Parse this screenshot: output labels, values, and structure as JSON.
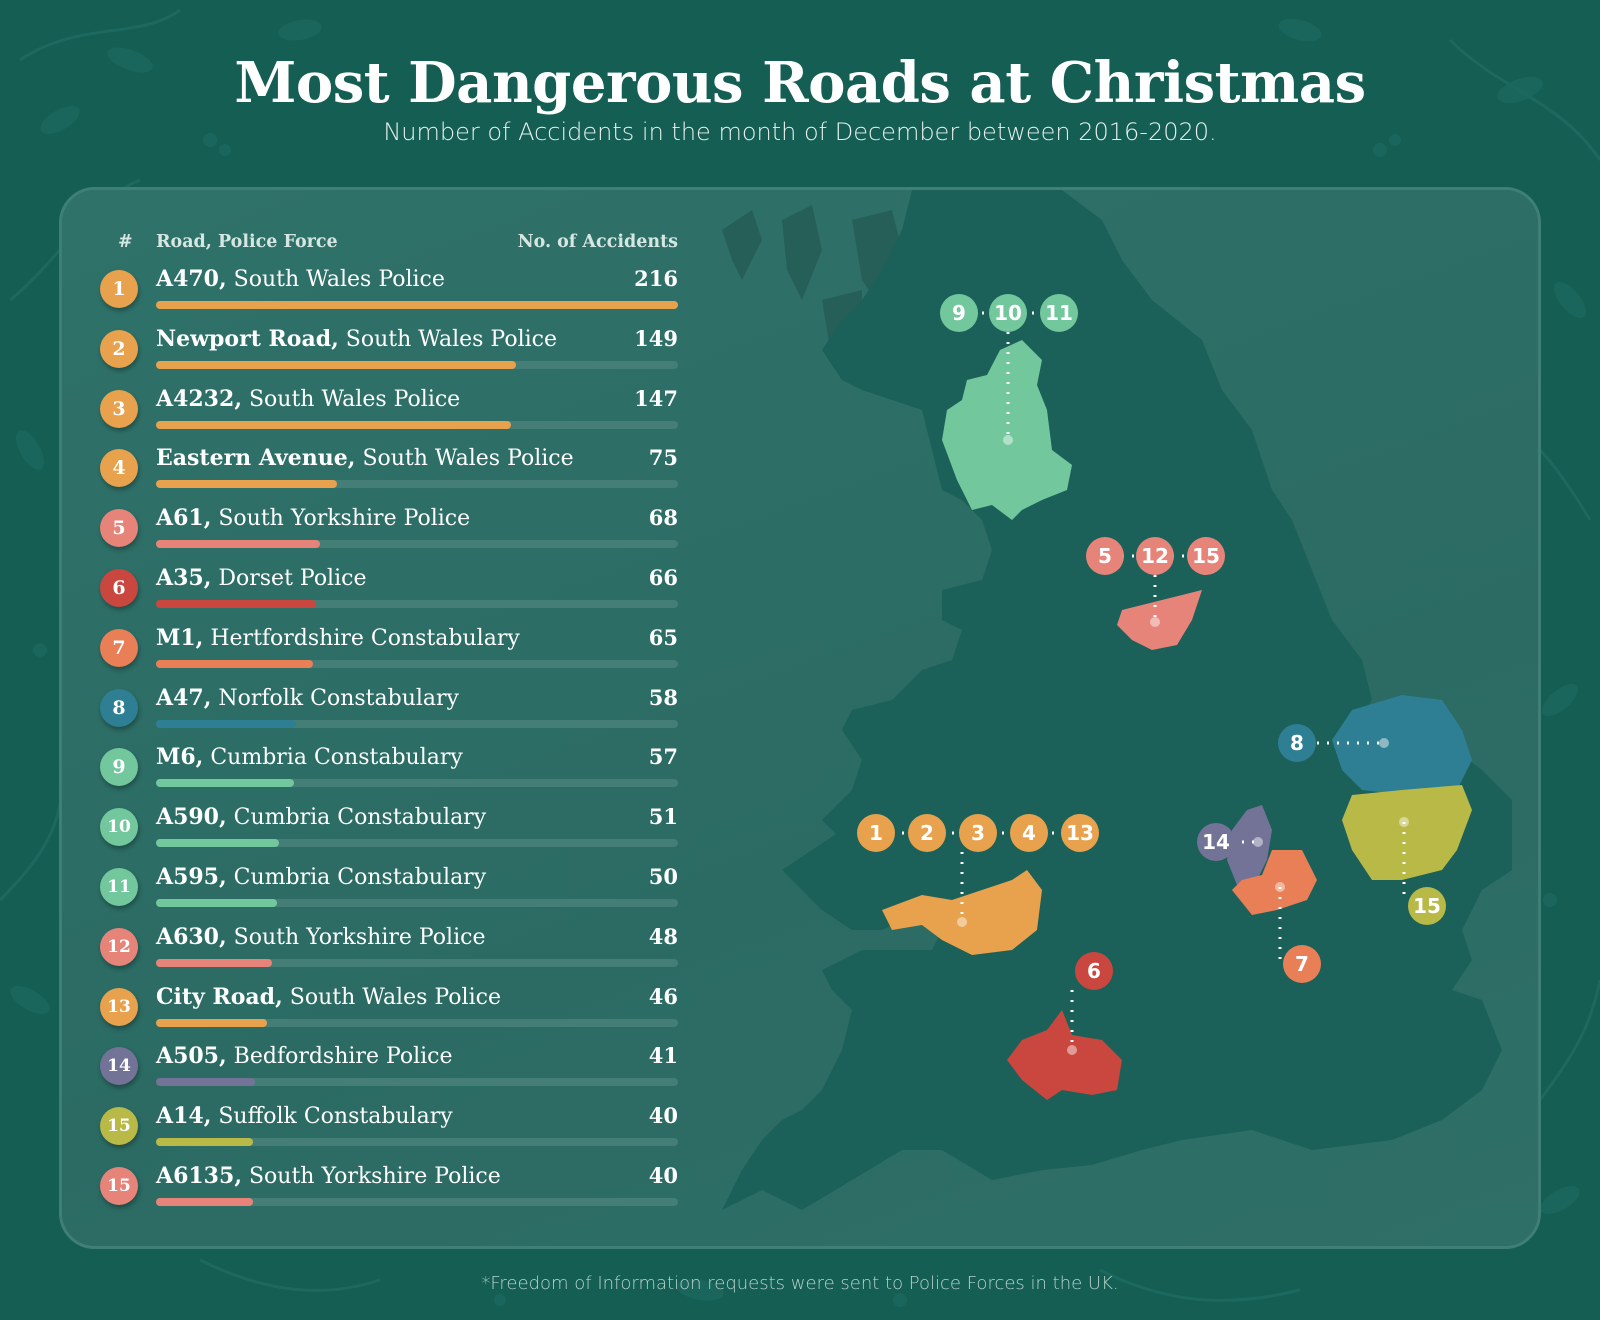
{
  "header": {
    "title": "Most Dangerous Roads at Christmas",
    "subtitle": "Number of Accidents in the month of December between 2016-2020."
  },
  "table": {
    "col_rank": "#",
    "col_road": "Road, Police Force",
    "col_accidents": "No. of Accidents",
    "max_value": 216,
    "rows": [
      {
        "rank": "1",
        "road": "A470",
        "force": "South Wales Police",
        "value": 216,
        "color": "#e8a24e"
      },
      {
        "rank": "2",
        "road": "Newport Road",
        "force": "South Wales Police",
        "value": 149,
        "color": "#e8a24e"
      },
      {
        "rank": "3",
        "road": "A4232",
        "force": "South Wales Police",
        "value": 147,
        "color": "#e8a24e"
      },
      {
        "rank": "4",
        "road": "Eastern Avenue",
        "force": "South Wales Police",
        "value": 75,
        "color": "#e8a24e"
      },
      {
        "rank": "5",
        "road": "A61",
        "force": "South Yorkshire Police",
        "value": 68,
        "color": "#e7847a"
      },
      {
        "rank": "6",
        "road": "A35",
        "force": "Dorset Police",
        "value": 66,
        "color": "#c9473e"
      },
      {
        "rank": "7",
        "road": "M1",
        "force": "Hertfordshire Constabulary",
        "value": 65,
        "color": "#e97f56"
      },
      {
        "rank": "8",
        "road": "A47",
        "force": "Norfolk Constabulary",
        "value": 58,
        "color": "#2e7f93"
      },
      {
        "rank": "9",
        "road": "M6",
        "force": "Cumbria Constabulary",
        "value": 57,
        "color": "#72c79d"
      },
      {
        "rank": "10",
        "road": "A590",
        "force": "Cumbria Constabulary",
        "value": 51,
        "color": "#72c79d"
      },
      {
        "rank": "11",
        "road": "A595",
        "force": "Cumbria Constabulary",
        "value": 50,
        "color": "#72c79d"
      },
      {
        "rank": "12",
        "road": "A630",
        "force": "South Yorkshire Police",
        "value": 48,
        "color": "#e7847a"
      },
      {
        "rank": "13",
        "road": "City Road",
        "force": "South Wales Police",
        "value": 46,
        "color": "#e8a24e"
      },
      {
        "rank": "14",
        "road": "A505",
        "force": "Bedfordshire Police",
        "value": 41,
        "color": "#737398"
      },
      {
        "rank": "15",
        "road": "A14",
        "force": "Suffolk Constabulary",
        "value": 40,
        "color": "#b9b948"
      },
      {
        "rank": "15",
        "road": "A6135",
        "force": "South Yorkshire Police",
        "value": 40,
        "color": "#e7847a"
      }
    ]
  },
  "map": {
    "groups": [
      {
        "region": "Cumbria",
        "color": "#72c79d",
        "pins": [
          "9",
          "10",
          "11"
        ]
      },
      {
        "region": "South Yorkshire",
        "color": "#e7847a",
        "pins": [
          "5",
          "12",
          "15"
        ]
      },
      {
        "region": "Norfolk",
        "color": "#2e7f93",
        "pins": [
          "8"
        ]
      },
      {
        "region": "South Wales",
        "color": "#e8a24e",
        "pins": [
          "1",
          "2",
          "3",
          "4",
          "13"
        ]
      },
      {
        "region": "Bedfordshire",
        "color": "#737398",
        "pins": [
          "14"
        ]
      },
      {
        "region": "Hertfordshire",
        "color": "#e97f56",
        "pins": [
          "7"
        ]
      },
      {
        "region": "Suffolk",
        "color": "#b9b948",
        "pins": [
          "15"
        ]
      },
      {
        "region": "Dorset",
        "color": "#c9473e",
        "pins": [
          "6"
        ]
      }
    ]
  },
  "footnote": "*Freedom of Information requests were sent to Police Forces in the UK.",
  "colors": {
    "background": "#145e54",
    "panel": "#2d6e66",
    "land": "#1b6159",
    "bar_track": "#447e77"
  },
  "chart_data": {
    "type": "bar",
    "orientation": "horizontal",
    "title": "Most Dangerous Roads at Christmas",
    "subtitle": "Number of Accidents in the month of December between 2016-2020.",
    "xlabel": "No. of Accidents",
    "ylabel": "Road, Police Force",
    "categories": [
      "A470, South Wales Police",
      "Newport Road, South Wales Police",
      "A4232, South Wales Police",
      "Eastern Avenue, South Wales Police",
      "A61, South Yorkshire Police",
      "A35, Dorset Police",
      "M1, Hertfordshire Constabulary",
      "A47, Norfolk Constabulary",
      "M6, Cumbria Constabulary",
      "A590, Cumbria Constabulary",
      "A595, Cumbria Constabulary",
      "A630, South Yorkshire Police",
      "City Road, South Wales Police",
      "A505, Bedfordshire Police",
      "A14, Suffolk Constabulary",
      "A6135, South Yorkshire Police"
    ],
    "values": [
      216,
      149,
      147,
      75,
      68,
      66,
      65,
      58,
      57,
      51,
      50,
      48,
      46,
      41,
      40,
      40
    ],
    "ranks": [
      1,
      2,
      3,
      4,
      5,
      6,
      7,
      8,
      9,
      10,
      11,
      12,
      13,
      14,
      15,
      15
    ],
    "xlim": [
      0,
      216
    ],
    "grid": false,
    "legend": "none",
    "annotation": "*Freedom of Information requests were sent to Police Forces in the UK."
  }
}
